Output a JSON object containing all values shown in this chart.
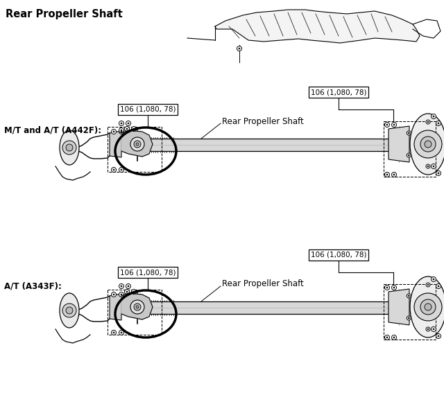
{
  "title": "Rear Propeller Shaft",
  "background_color": "#ffffff",
  "text_color": "#000000",
  "labels": {
    "main_title": "Rear Propeller Shaft",
    "mt_at_label": "M/T and A/T (A442F):",
    "at_label": "A/T (A343F):",
    "shaft_label_top": "Rear Propeller Shaft",
    "shaft_label_bottom": "Rear Propeller Shaft",
    "torque_tl": "106 (1,080, 78)",
    "torque_tr": "106 (1,080, 78)",
    "torque_bl": "106 (1,080, 78)",
    "torque_br": "106 (1,080, 78)"
  },
  "figsize": [
    6.4,
    5.96
  ],
  "dpi": 100
}
